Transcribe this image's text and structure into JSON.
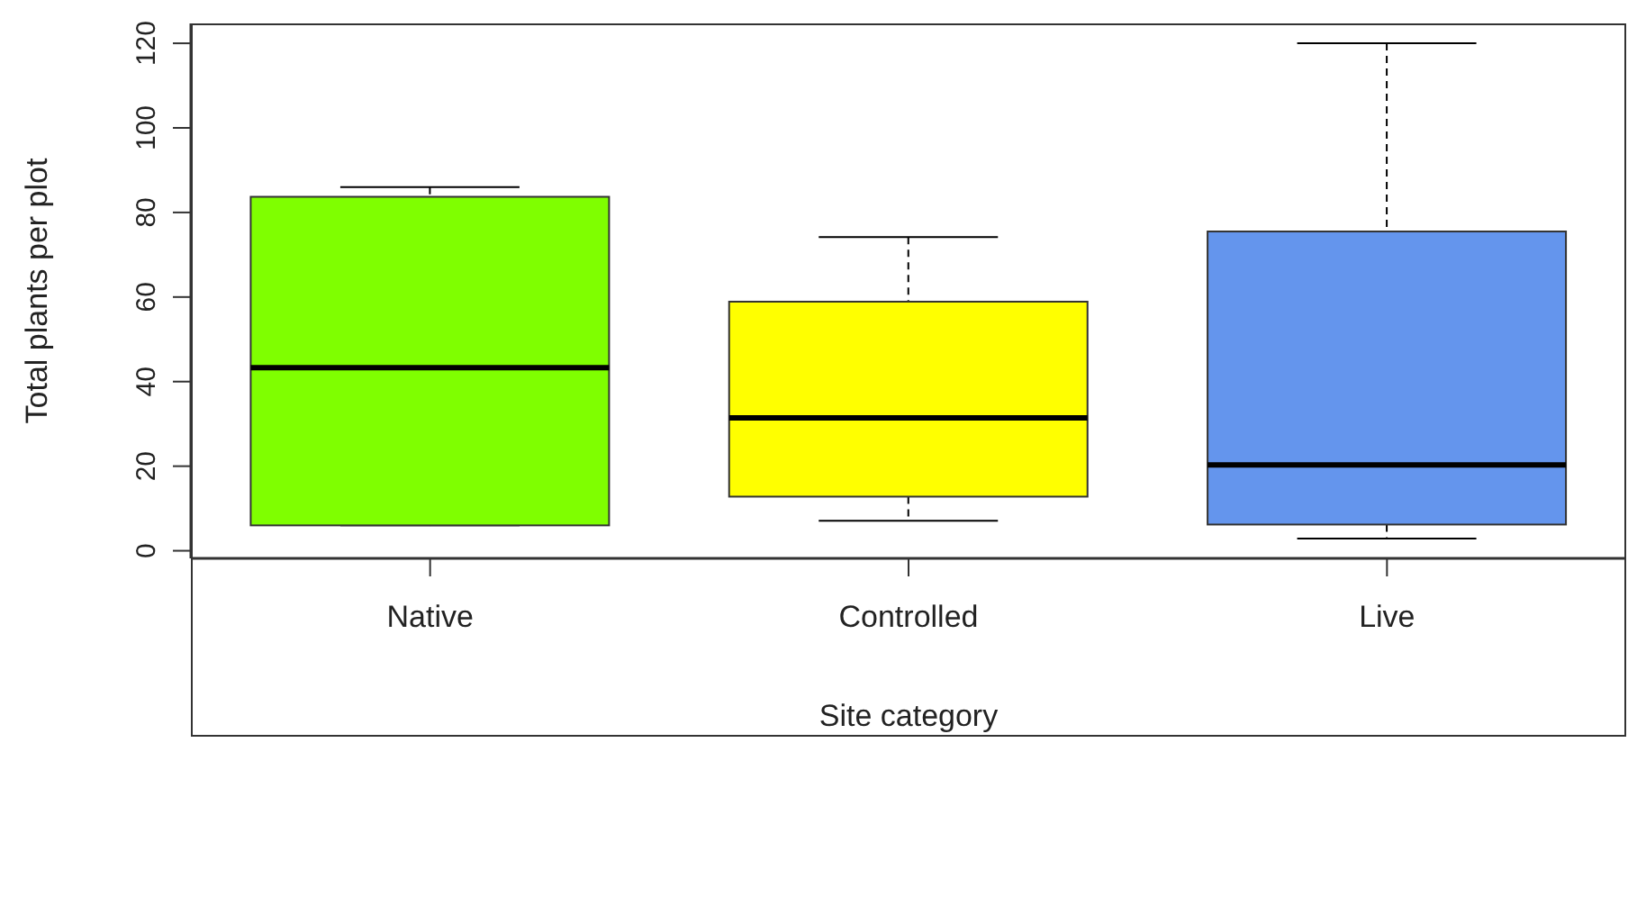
{
  "chart_data": {
    "type": "box",
    "xlabel": "Site category",
    "ylabel": "Total plants per plot",
    "categories": [
      "Native",
      "Controlled",
      "Live"
    ],
    "colors": [
      "#7fff00",
      "#ffff00",
      "#6495ed"
    ],
    "boxes": [
      {
        "low": 6,
        "q1": 6,
        "median": 43.3,
        "q3": 83.7,
        "high": 86
      },
      {
        "low": 7.1,
        "q1": 12.8,
        "median": 31.4,
        "q3": 58.9,
        "high": 74.2
      },
      {
        "low": 2.9,
        "q1": 6.2,
        "median": 20.3,
        "q3": 75.5,
        "high": 120
      }
    ],
    "ylim": [
      -1.8,
      124.7
    ],
    "yticks": [
      0,
      20,
      40,
      60,
      80,
      100,
      120
    ]
  }
}
